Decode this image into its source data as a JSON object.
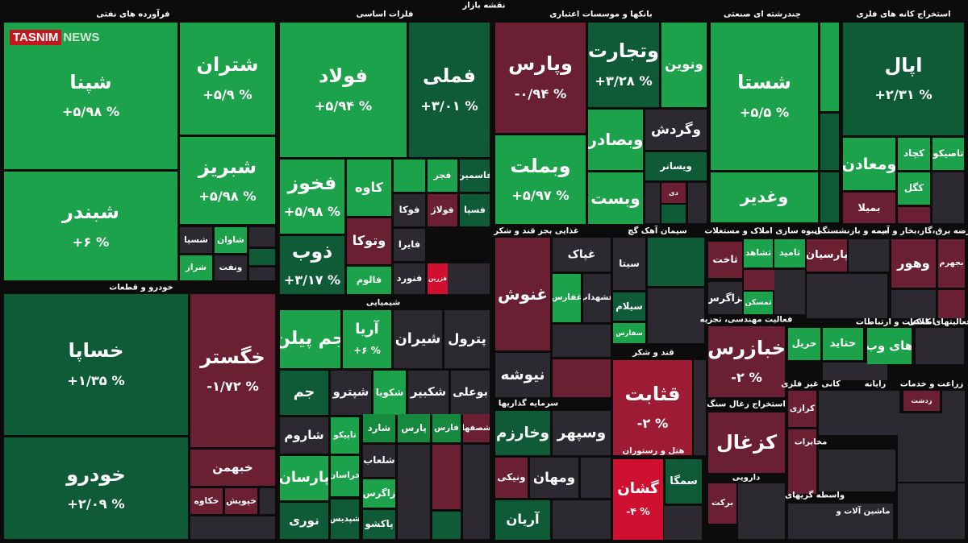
{
  "header": {
    "title": "نقشه بازار",
    "logo_main": "TASNIM",
    "logo_sub": "NEWS"
  },
  "sectors": [
    "فرآورده های نفتی",
    "فلزات اساسی",
    "بانکها و موسسات اعتباری",
    "چندرشته ای صنعتی",
    "استخراج کانه های فلزی",
    "خودرو و قطعات",
    "شیمیایی",
    "غذایی بجز قند و شکر",
    "سیمان آهک گچ",
    "انبوه سازی املاک و مستغلات",
    "بیمه و بازنشستگی",
    "عرضه برق،گاز،بخار و آب",
    "فعالیت مهندسی، تجزیه",
    "اطلاعات و ارتباطات",
    "فعالیتهای کمکی",
    "قند و شکر",
    "کانی غیر فلزی",
    "رایانه",
    "زراعت و خدمات",
    "سرمایه گذاریها",
    "استخراج زغال سنگ",
    "مخابرات",
    "هتل و رستوران",
    "دارویی",
    "واسطه گریهای",
    "ماشین آلات و"
  ],
  "tiles": [
    {
      "name": "شپنا",
      "change": "+۵/۹۸ %"
    },
    {
      "name": "شبندر",
      "change": "+۶ %"
    },
    {
      "name": "شتران",
      "change": "+۵/۹ %"
    },
    {
      "name": "شبریز",
      "change": "+۵/۹۸ %"
    },
    {
      "name": "شسپا"
    },
    {
      "name": "شاوان"
    },
    {
      "name": "شراز"
    },
    {
      "name": "ونفت"
    },
    {
      "name": "خساپا",
      "change": "+۱/۳۵ %"
    },
    {
      "name": "خودرو",
      "change": "+۲/۰۹ %"
    },
    {
      "name": "خگستر",
      "change": "-۱/۷۲ %"
    },
    {
      "name": "خبهمن"
    },
    {
      "name": "خکاوه"
    },
    {
      "name": "خپویش"
    },
    {
      "name": "فولاد",
      "change": "+۵/۹۴ %"
    },
    {
      "name": "فملی",
      "change": "+۳/۰۱ %"
    },
    {
      "name": "فخوز",
      "change": "+۵/۹۸ %"
    },
    {
      "name": "ذوب",
      "change": "+۳/۱۷ %"
    },
    {
      "name": "کاوه"
    },
    {
      "name": "وتوکا"
    },
    {
      "name": "فالوم"
    },
    {
      "name": "فجر"
    },
    {
      "name": "فاسمین"
    },
    {
      "name": "فوکا"
    },
    {
      "name": "فولاژ"
    },
    {
      "name": "فسپا"
    },
    {
      "name": "فایرا"
    },
    {
      "name": "فنورد"
    },
    {
      "name": "فزرین"
    },
    {
      "name": "جم پیلن"
    },
    {
      "name": "آریا",
      "change": "+۶ %"
    },
    {
      "name": "شیران"
    },
    {
      "name": "پترول"
    },
    {
      "name": "جم"
    },
    {
      "name": "شپترو"
    },
    {
      "name": "شکویا"
    },
    {
      "name": "شکبیر"
    },
    {
      "name": "بوعلی"
    },
    {
      "name": "شاروم"
    },
    {
      "name": "تاپیکو"
    },
    {
      "name": "شارد"
    },
    {
      "name": "پارس"
    },
    {
      "name": "فارس"
    },
    {
      "name": "شصفها"
    },
    {
      "name": "پارسان"
    },
    {
      "name": "خراسان"
    },
    {
      "name": "نوری"
    },
    {
      "name": "شپدیس"
    },
    {
      "name": "شلعاب"
    },
    {
      "name": "زاگرس"
    },
    {
      "name": "پاکشو"
    },
    {
      "name": "وپارس",
      "change": "-۰/۹۴ %"
    },
    {
      "name": "وتجارت",
      "change": "+۳/۲۸ %"
    },
    {
      "name": "ونوین"
    },
    {
      "name": "وبملت",
      "change": "+۵/۹۷ %"
    },
    {
      "name": "وبصادر"
    },
    {
      "name": "وگردش"
    },
    {
      "name": "ویسانر"
    },
    {
      "name": "وبست"
    },
    {
      "name": "دی"
    },
    {
      "name": "شستا",
      "change": "+۵/۵ %"
    },
    {
      "name": "وغدیر"
    },
    {
      "name": "اپال",
      "change": "+۲/۳۱ %"
    },
    {
      "name": "ومعادن"
    },
    {
      "name": "کچاد"
    },
    {
      "name": "تاصیکو"
    },
    {
      "name": "کگل"
    },
    {
      "name": "بمیلا"
    },
    {
      "name": "غنوش"
    },
    {
      "name": "غپاک"
    },
    {
      "name": "غفارس"
    },
    {
      "name": "غشهداب"
    },
    {
      "name": "نیوشه"
    },
    {
      "name": "سیتا"
    },
    {
      "name": "سیلام"
    },
    {
      "name": "سفارس"
    },
    {
      "name": "قثابت",
      "change": "-۲ %"
    },
    {
      "name": "وخارزم"
    },
    {
      "name": "وسپهر"
    },
    {
      "name": "ونیکی"
    },
    {
      "name": "ومهان"
    },
    {
      "name": "آریان"
    },
    {
      "name": "گشان",
      "change": "-۴ %"
    },
    {
      "name": "سمگا"
    },
    {
      "name": "ثاخت"
    },
    {
      "name": "ثشاهد"
    },
    {
      "name": "ثامید"
    },
    {
      "name": "ثزاگرس"
    },
    {
      "name": "ثمسکن"
    },
    {
      "name": "خبازرس",
      "change": "-۲ %"
    },
    {
      "name": "کزغال"
    },
    {
      "name": "برکت"
    },
    {
      "name": "پارسیان"
    },
    {
      "name": "وهور"
    },
    {
      "name": "بجهرم"
    },
    {
      "name": "حریل"
    },
    {
      "name": "حتاید"
    },
    {
      "name": "های وب"
    },
    {
      "name": "کرازی"
    },
    {
      "name": "زدشت"
    }
  ]
}
